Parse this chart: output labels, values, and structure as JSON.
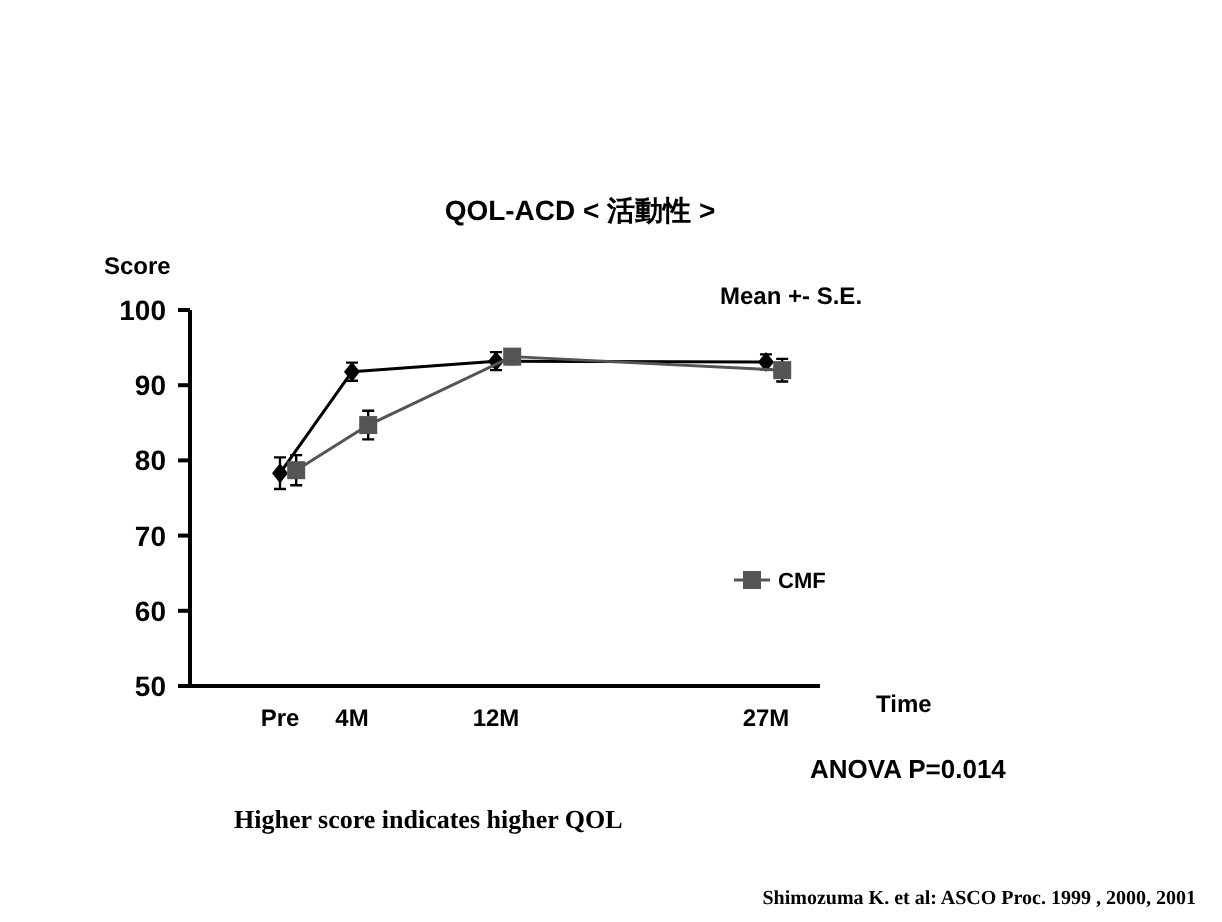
{
  "chart_data": {
    "type": "line",
    "title": "QOL-ACD  < 活動性 >",
    "xlabel": "Time",
    "ylabel": "Score",
    "xlim": [
      -5,
      30
    ],
    "xticks": [
      {
        "value": 0,
        "label": "Pre"
      },
      {
        "value": 4,
        "label": "4M"
      },
      {
        "value": 12,
        "label": "12M"
      },
      {
        "value": 27,
        "label": "27M"
      }
    ],
    "ylim": [
      50,
      100
    ],
    "yticks": [
      50,
      60,
      70,
      80,
      90,
      100
    ],
    "series": [
      {
        "color": "#000000",
        "marker": "diamond",
        "x": [
          0,
          4,
          12,
          27
        ],
        "values": [
          78.3,
          91.8,
          93.2,
          93.1
        ],
        "errors": [
          2.1,
          1.2,
          1.2,
          1.0
        ]
      },
      {
        "name": "CMF",
        "color": "#555555",
        "marker": "square",
        "x": [
          0.9,
          4.9,
          12.9,
          27.9
        ],
        "values": [
          78.7,
          84.7,
          93.8,
          92.0
        ],
        "errors": [
          2.0,
          1.9,
          1.0,
          1.5
        ]
      }
    ],
    "legend": "bottom right",
    "grid": false,
    "annotations": [
      "Mean +- S.E.",
      "ANOVA        P=0.014",
      "Higher score indicates higher QOL",
      "Shimozuma K. et al: ASCO Proc. 1999 , 2000, 2001"
    ]
  }
}
